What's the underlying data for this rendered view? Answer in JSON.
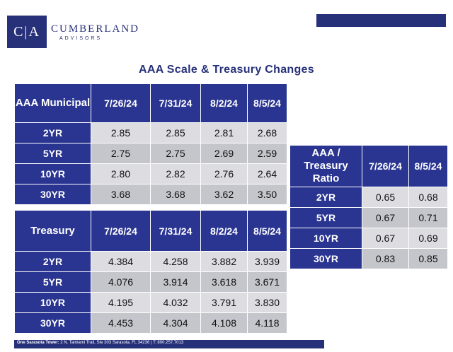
{
  "header": {
    "logo_letters": "C|A",
    "logo_name": "CUMBERLAND",
    "logo_sub": "ADVISORS"
  },
  "title": "AAA Scale & Treasury Changes",
  "municipal_table": {
    "header": [
      "AAA Municipal",
      "7/26/24",
      "7/31/24",
      "8/2/24",
      "8/5/24"
    ],
    "rows": [
      [
        "2YR",
        "2.85",
        "2.85",
        "2.81",
        "2.68"
      ],
      [
        "5YR",
        "2.75",
        "2.75",
        "2.69",
        "2.59"
      ],
      [
        "10YR",
        "2.80",
        "2.82",
        "2.76",
        "2.64"
      ],
      [
        "30YR",
        "3.68",
        "3.68",
        "3.62",
        "3.50"
      ]
    ]
  },
  "treasury_table": {
    "header": [
      "Treasury",
      "7/26/24",
      "7/31/24",
      "8/2/24",
      "8/5/24"
    ],
    "rows": [
      [
        "2YR",
        "4.384",
        "4.258",
        "3.882",
        "3.939"
      ],
      [
        "5YR",
        "4.076",
        "3.914",
        "3.618",
        "3.671"
      ],
      [
        "10YR",
        "4.195",
        "4.032",
        "3.791",
        "3.830"
      ],
      [
        "30YR",
        "4.453",
        "4.304",
        "4.108",
        "4.118"
      ]
    ]
  },
  "ratio_table": {
    "header": [
      "AAA / Treasury Ratio",
      "7/26/24",
      "8/5/24"
    ],
    "rows": [
      [
        "2YR",
        "0.65",
        "0.68"
      ],
      [
        "5YR",
        "0.67",
        "0.71"
      ],
      [
        "10YR",
        "0.67",
        "0.69"
      ],
      [
        "30YR",
        "0.83",
        "0.85"
      ]
    ]
  },
  "footer": {
    "label": "One Sarasota Tower:",
    "address": "2 N. Tamiami Trail, Ste 303  Sarasota, FL 34236   |   T: 800.257.7013"
  }
}
